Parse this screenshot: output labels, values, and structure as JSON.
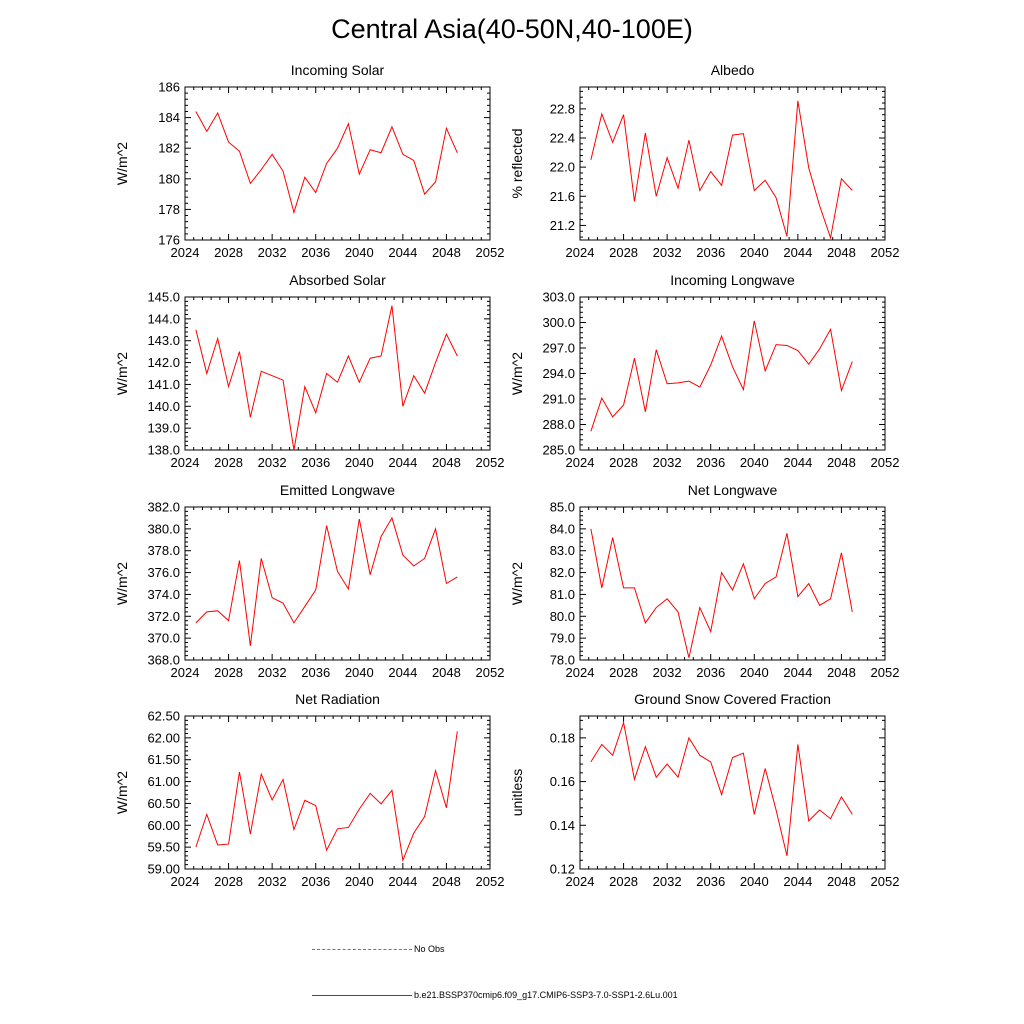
{
  "figure": {
    "title": "Central Asia(40-50N,40-100E)"
  },
  "legend": [
    {
      "label": "No Obs",
      "color": "#5b6be0",
      "style": "dashed"
    },
    {
      "label": "b.e21.BSSP370cmip6.f09_g17.CMIP6-SSP3-7.0-SSP1-2.6Lu.001",
      "color": "#ff0000",
      "style": "solid"
    }
  ],
  "chart_data": [
    {
      "type": "line",
      "title": "Incoming Solar",
      "xlabel": "",
      "ylabel": "W/m^2",
      "xlim": [
        2024,
        2052
      ],
      "xticks": [
        2024,
        2028,
        2032,
        2036,
        2040,
        2044,
        2048,
        2052
      ],
      "xtick_labels": [
        "2024",
        "2028",
        "2032",
        "2036",
        "2040",
        "2044",
        "2048",
        "2052"
      ],
      "ylim": [
        176,
        186
      ],
      "yticks": [
        176,
        178,
        180,
        182,
        184,
        186
      ],
      "ytick_labels": [
        "176",
        "178",
        "180",
        "182",
        "184",
        "186"
      ],
      "grid": false,
      "series": [
        {
          "color": "#ff0000",
          "x": [
            2025,
            2026,
            2027,
            2028,
            2029,
            2030,
            2031,
            2032,
            2033,
            2034,
            2035,
            2036,
            2037,
            2038,
            2039,
            2040,
            2041,
            2042,
            2043,
            2044,
            2045,
            2046,
            2047,
            2048,
            2049
          ],
          "values": [
            184.4,
            183.1,
            184.3,
            182.4,
            181.8,
            179.7,
            180.6,
            181.6,
            180.5,
            177.8,
            180.1,
            179.1,
            181.0,
            182.0,
            183.6,
            180.3,
            181.9,
            181.7,
            183.4,
            181.6,
            181.2,
            179.0,
            179.8,
            183.3,
            181.7
          ]
        }
      ]
    },
    {
      "type": "line",
      "title": "Albedo",
      "xlabel": "",
      "ylabel": "% reflected",
      "xlim": [
        2024,
        2052
      ],
      "xticks": [
        2024,
        2028,
        2032,
        2036,
        2040,
        2044,
        2048,
        2052
      ],
      "xtick_labels": [
        "2024",
        "2028",
        "2032",
        "2036",
        "2040",
        "2044",
        "2048",
        "2052"
      ],
      "ylim": [
        21.0,
        23.1
      ],
      "yticks": [
        21.2,
        21.6,
        22.0,
        22.4,
        22.8
      ],
      "ytick_labels": [
        "21.2",
        "21.6",
        "22.0",
        "22.4",
        "22.8"
      ],
      "grid": false,
      "series": [
        {
          "color": "#ff0000",
          "x": [
            2025,
            2026,
            2027,
            2028,
            2029,
            2030,
            2031,
            2032,
            2033,
            2034,
            2035,
            2036,
            2037,
            2038,
            2039,
            2040,
            2041,
            2042,
            2043,
            2044,
            2045,
            2046,
            2047,
            2048,
            2049
          ],
          "values": [
            22.1,
            22.73,
            22.34,
            22.72,
            21.53,
            22.47,
            21.6,
            22.13,
            21.71,
            22.37,
            21.68,
            21.94,
            21.75,
            22.44,
            22.46,
            21.68,
            21.82,
            21.58,
            21.05,
            22.91,
            21.99,
            21.47,
            21.03,
            21.84,
            21.68
          ]
        }
      ]
    },
    {
      "type": "line",
      "title": "Absorbed Solar",
      "xlabel": "",
      "ylabel": "W/m^2",
      "xlim": [
        2024,
        2052
      ],
      "xticks": [
        2024,
        2028,
        2032,
        2036,
        2040,
        2044,
        2048,
        2052
      ],
      "xtick_labels": [
        "2024",
        "2028",
        "2032",
        "2036",
        "2040",
        "2044",
        "2048",
        "2052"
      ],
      "ylim": [
        138.0,
        145.0
      ],
      "yticks": [
        138,
        139,
        140,
        141,
        142,
        143,
        144,
        145
      ],
      "ytick_labels": [
        "138.0",
        "139.0",
        "140.0",
        "141.0",
        "142.0",
        "143.0",
        "144.0",
        "145.0"
      ],
      "grid": false,
      "series": [
        {
          "color": "#ff0000",
          "x": [
            2025,
            2026,
            2027,
            2028,
            2029,
            2030,
            2031,
            2032,
            2033,
            2034,
            2035,
            2036,
            2037,
            2038,
            2039,
            2040,
            2041,
            2042,
            2043,
            2044,
            2045,
            2046,
            2047,
            2048,
            2049
          ],
          "values": [
            143.5,
            141.5,
            143.1,
            140.9,
            142.5,
            139.5,
            141.6,
            141.4,
            141.2,
            138.0,
            140.9,
            139.7,
            141.5,
            141.1,
            142.3,
            141.1,
            142.2,
            142.3,
            144.6,
            140.0,
            141.4,
            140.6,
            142.0,
            143.3,
            142.3
          ]
        }
      ]
    },
    {
      "type": "line",
      "title": "Incoming Longwave",
      "xlabel": "",
      "ylabel": "W/m^2",
      "xlim": [
        2024,
        2052
      ],
      "xticks": [
        2024,
        2028,
        2032,
        2036,
        2040,
        2044,
        2048,
        2052
      ],
      "xtick_labels": [
        "2024",
        "2028",
        "2032",
        "2036",
        "2040",
        "2044",
        "2048",
        "2052"
      ],
      "ylim": [
        285.0,
        303.0
      ],
      "yticks": [
        285,
        288,
        291,
        294,
        297,
        300,
        303
      ],
      "ytick_labels": [
        "285.0",
        "288.0",
        "291.0",
        "294.0",
        "297.0",
        "300.0",
        "303.0"
      ],
      "grid": false,
      "series": [
        {
          "color": "#ff0000",
          "x": [
            2025,
            2026,
            2027,
            2028,
            2029,
            2030,
            2031,
            2032,
            2033,
            2034,
            2035,
            2036,
            2037,
            2038,
            2039,
            2040,
            2041,
            2042,
            2043,
            2044,
            2045,
            2046,
            2047,
            2048,
            2049
          ],
          "values": [
            287.2,
            291.1,
            288.9,
            290.3,
            295.8,
            289.5,
            296.8,
            292.8,
            292.9,
            293.1,
            292.4,
            295.0,
            298.4,
            294.8,
            292.1,
            300.2,
            294.3,
            297.4,
            297.3,
            296.7,
            295.1,
            296.9,
            299.2,
            292.0,
            295.4
          ]
        }
      ]
    },
    {
      "type": "line",
      "title": "Emitted Longwave",
      "xlabel": "",
      "ylabel": "W/m^2",
      "xlim": [
        2024,
        2052
      ],
      "xticks": [
        2024,
        2028,
        2032,
        2036,
        2040,
        2044,
        2048,
        2052
      ],
      "xtick_labels": [
        "2024",
        "2028",
        "2032",
        "2036",
        "2040",
        "2044",
        "2048",
        "2052"
      ],
      "ylim": [
        368.0,
        382.0
      ],
      "yticks": [
        368,
        370,
        372,
        374,
        376,
        378,
        380,
        382
      ],
      "ytick_labels": [
        "368.0",
        "370.0",
        "372.0",
        "374.0",
        "376.0",
        "378.0",
        "380.0",
        "382.0"
      ],
      "grid": false,
      "series": [
        {
          "color": "#ff0000",
          "x": [
            2025,
            2026,
            2027,
            2028,
            2029,
            2030,
            2031,
            2032,
            2033,
            2034,
            2035,
            2036,
            2037,
            2038,
            2039,
            2040,
            2041,
            2042,
            2043,
            2044,
            2045,
            2046,
            2047,
            2048,
            2049
          ],
          "values": [
            371.4,
            372.4,
            372.5,
            371.6,
            377.1,
            369.3,
            377.3,
            373.7,
            373.2,
            371.4,
            372.9,
            374.4,
            380.3,
            376.1,
            374.5,
            380.9,
            375.8,
            379.3,
            381.0,
            377.6,
            376.6,
            377.3,
            380.0,
            375.0,
            375.6
          ]
        }
      ]
    },
    {
      "type": "line",
      "title": "Net Longwave",
      "xlabel": "",
      "ylabel": "W/m^2",
      "xlim": [
        2024,
        2052
      ],
      "xticks": [
        2024,
        2028,
        2032,
        2036,
        2040,
        2044,
        2048,
        2052
      ],
      "xtick_labels": [
        "2024",
        "2028",
        "2032",
        "2036",
        "2040",
        "2044",
        "2048",
        "2052"
      ],
      "ylim": [
        78.0,
        85.0
      ],
      "yticks": [
        78,
        79,
        80,
        81,
        82,
        83,
        84,
        85
      ],
      "ytick_labels": [
        "78.0",
        "79.0",
        "80.0",
        "81.0",
        "82.0",
        "83.0",
        "84.0",
        "85.0"
      ],
      "grid": false,
      "series": [
        {
          "color": "#ff0000",
          "x": [
            2025,
            2026,
            2027,
            2028,
            2029,
            2030,
            2031,
            2032,
            2033,
            2034,
            2035,
            2036,
            2037,
            2038,
            2039,
            2040,
            2041,
            2042,
            2043,
            2044,
            2045,
            2046,
            2047,
            2048,
            2049
          ],
          "values": [
            84.0,
            81.3,
            83.6,
            81.3,
            81.3,
            79.7,
            80.4,
            80.8,
            80.2,
            78.1,
            80.4,
            79.3,
            82.0,
            81.2,
            82.4,
            80.8,
            81.5,
            81.8,
            83.8,
            80.9,
            81.5,
            80.5,
            80.8,
            82.9,
            80.2
          ]
        }
      ]
    },
    {
      "type": "line",
      "title": "Net Radiation",
      "xlabel": "",
      "ylabel": "W/m^2",
      "xlim": [
        2024,
        2052
      ],
      "xticks": [
        2024,
        2028,
        2032,
        2036,
        2040,
        2044,
        2048,
        2052
      ],
      "xtick_labels": [
        "2024",
        "2028",
        "2032",
        "2036",
        "2040",
        "2044",
        "2048",
        "2052"
      ],
      "ylim": [
        59.0,
        62.5
      ],
      "yticks": [
        59.0,
        59.5,
        60.0,
        60.5,
        61.0,
        61.5,
        62.0,
        62.5
      ],
      "ytick_labels": [
        "59.00",
        "59.50",
        "60.00",
        "60.50",
        "61.00",
        "61.50",
        "62.00",
        "62.50"
      ],
      "grid": false,
      "series": [
        {
          "color": "#ff0000",
          "x": [
            2025,
            2026,
            2027,
            2028,
            2029,
            2030,
            2031,
            2032,
            2033,
            2034,
            2035,
            2036,
            2037,
            2038,
            2039,
            2040,
            2041,
            2042,
            2043,
            2044,
            2045,
            2046,
            2047,
            2048,
            2049
          ],
          "values": [
            59.5,
            60.25,
            59.55,
            59.57,
            61.22,
            59.8,
            61.17,
            60.58,
            61.05,
            59.9,
            60.57,
            60.45,
            59.43,
            59.92,
            59.95,
            60.37,
            60.73,
            60.49,
            60.8,
            59.2,
            59.82,
            60.2,
            61.25,
            60.4,
            62.15
          ]
        }
      ]
    },
    {
      "type": "line",
      "title": "Ground Snow Covered Fraction",
      "xlabel": "",
      "ylabel": "unitless",
      "xlim": [
        2024,
        2052
      ],
      "xticks": [
        2024,
        2028,
        2032,
        2036,
        2040,
        2044,
        2048,
        2052
      ],
      "xtick_labels": [
        "2024",
        "2028",
        "2032",
        "2036",
        "2040",
        "2044",
        "2048",
        "2052"
      ],
      "ylim": [
        0.12,
        0.19
      ],
      "yticks": [
        0.12,
        0.14,
        0.16,
        0.18
      ],
      "ytick_labels": [
        "0.12",
        "0.14",
        "0.16",
        "0.18"
      ],
      "grid": false,
      "series": [
        {
          "color": "#ff0000",
          "x": [
            2025,
            2026,
            2027,
            2028,
            2029,
            2030,
            2031,
            2032,
            2033,
            2034,
            2035,
            2036,
            2037,
            2038,
            2039,
            2040,
            2041,
            2042,
            2043,
            2044,
            2045,
            2046,
            2047,
            2048,
            2049
          ],
          "values": [
            0.169,
            0.177,
            0.172,
            0.187,
            0.161,
            0.176,
            0.162,
            0.168,
            0.162,
            0.18,
            0.172,
            0.169,
            0.154,
            0.171,
            0.173,
            0.145,
            0.166,
            0.147,
            0.126,
            0.177,
            0.142,
            0.147,
            0.143,
            0.153,
            0.145
          ]
        }
      ]
    }
  ]
}
